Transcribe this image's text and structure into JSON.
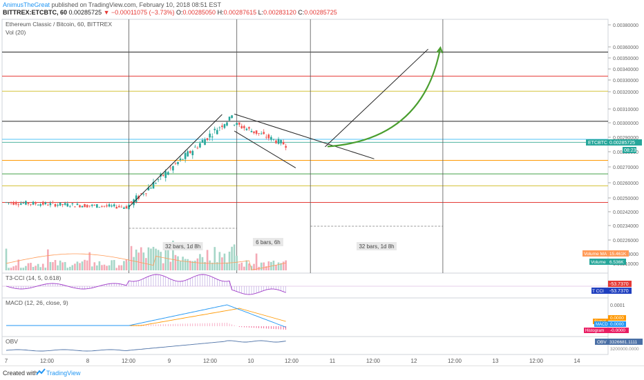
{
  "header": {
    "author": "AnimusTheGreat",
    "published": "published on TradingView.com, February 10, 2018 08:51 EST",
    "symbol": "BITTREX:ETCBTC, 60",
    "last": "0.00285725",
    "change": "−0.00011075 (−3.73%)",
    "o_label": "O:",
    "o": "0.00285050",
    "h_label": "H:",
    "h": "0.00287615",
    "l_label": "L:",
    "l": "0.00283120",
    "c_label": "C:",
    "c": "0.00285725"
  },
  "footer": {
    "created_with": "Created with",
    "brand": "TradingView"
  },
  "colors": {
    "up": "#26a69a",
    "down": "#ef5350",
    "vol_up": "#a5d6c7",
    "vol_down": "#f4a9b5",
    "cci": "#a03cc8",
    "macd": "#2196f3",
    "signal": "#ff9800",
    "obv": "#4a6fa5",
    "arrow": "#4a9e2f"
  },
  "chart_data": [
    {
      "type": "candlestick",
      "title": "Ethereum Classic / Bitcoin, 60, BITTREX",
      "sub_indicator": "Vol (20)",
      "x_ticks": [
        "7",
        "12:00",
        "8",
        "12:00",
        "9",
        "12:00",
        "10",
        "12:00",
        "11",
        "12:00",
        "12",
        "12:00",
        "13",
        "12:00",
        "14"
      ],
      "y_ticks": [
        "0.00380000",
        "0.00360000",
        "0.00350000",
        "0.00340000",
        "0.00330000",
        "0.00320000",
        "0.00310000",
        "0.00300000",
        "0.00290000",
        "0.00280000",
        "0.00270000",
        "0.00260000",
        "0.00250000",
        "0.00242000",
        "0.00234000",
        "0.00226000",
        "0.00218000",
        "0.00210000"
      ],
      "current_price_label": "ETCBTC",
      "current_price": "0.00285725",
      "countdown": "08:23",
      "ohlc_segments": [
        {
          "from": 0,
          "to": 50,
          "o": 0.00247,
          "c": 0.00244,
          "lo": 0.002436,
          "hi": 0.002484,
          "amp": 3e-05
        },
        {
          "from": 50,
          "to": 90,
          "o": 0.00244,
          "c": 0.00299,
          "lo": 0.00243,
          "hi": 0.00302,
          "amp": 5e-05
        },
        {
          "from": 90,
          "to": 93,
          "o": 0.00299,
          "c": 0.00304,
          "lo": 0.00297,
          "hi": 0.00306,
          "amp": 2e-05
        },
        {
          "from": 93,
          "to": 115,
          "o": 0.003,
          "c": 0.00286,
          "lo": 0.00279,
          "hi": 0.003,
          "amp": 4e-05
        }
      ],
      "horizontal_levels": [
        {
          "price": 0.00378,
          "color": "#4fb3a0"
        },
        {
          "price": 0.00347,
          "color": "#222222"
        },
        {
          "price": 0.00331,
          "color": "#e53935"
        },
        {
          "price": 0.00321,
          "color": "#d4c23a"
        },
        {
          "price": 0.00301,
          "color": "#222222"
        },
        {
          "price": 0.00289,
          "color": "#4fc3f7"
        },
        {
          "price": 0.00287,
          "color": "#4fb3a0"
        },
        {
          "price": 0.00275,
          "color": "#ff9800"
        },
        {
          "price": 0.00266,
          "color": "#43a047"
        },
        {
          "price": 0.00258,
          "color": "#d4c23a"
        },
        {
          "price": 0.00247,
          "color": "#e53935"
        }
      ],
      "trend_lines": [
        {
          "x1": 50,
          "y1": 0.00244,
          "x2": 88,
          "y2": 0.003055,
          "color": "#222222"
        },
        {
          "x1": 93,
          "y1": 0.003058,
          "x2": 150,
          "y2": 0.00276,
          "color": "#222222"
        },
        {
          "x1": 93,
          "y1": 0.002945,
          "x2": 118,
          "y2": 0.0027,
          "color": "#222222"
        },
        {
          "x1": 130,
          "y1": 0.00284,
          "x2": 172,
          "y2": 0.00349,
          "color": "#222222"
        }
      ],
      "projection_arrow": {
        "x1": 131,
        "y1": 0.002842,
        "x2": 177,
        "y2": 0.0035
      },
      "range_markers": [
        {
          "x1": 50,
          "x2": 94,
          "label": "32 bars, 1d 8h"
        },
        {
          "x1": 124,
          "x2": 178,
          "label": "32 bars, 1d 8h"
        }
      ],
      "span_marker": {
        "x1": 94,
        "x2": 124,
        "label": "6 bars, 6h"
      },
      "volume_ma_label": "Volume MA",
      "volume_ma": "15.461K",
      "volume_label": "Volume",
      "volume": "6.536K"
    },
    {
      "type": "line",
      "title": "T3-CCI (14, 5, 0.618)",
      "value": "-53.7370",
      "badge_prefix": "T CCI",
      "badge_value": "-53.7370"
    },
    {
      "type": "line",
      "title": "MACD (12, 26, close, 9)",
      "y_tick": "0.0001",
      "signal_label": "Signal",
      "signal": "0.0000",
      "macd_label": "MACD",
      "macd": "0.0000",
      "histogram_label": "Histogram",
      "histogram": "-0.0000"
    },
    {
      "type": "line",
      "title": "OBV",
      "obv_label": "OBV",
      "obv": "3326681.1111",
      "y_tick": "3200000.0000"
    }
  ]
}
